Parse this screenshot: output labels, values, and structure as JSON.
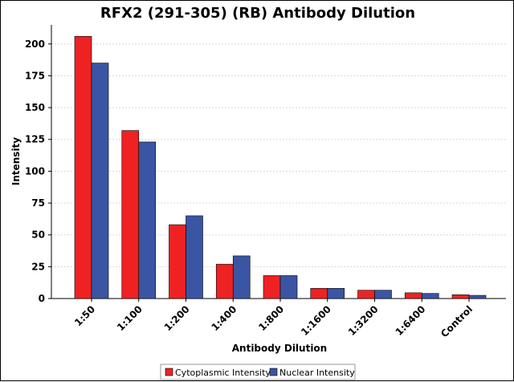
{
  "chart_data": {
    "type": "bar",
    "title": "RFX2 (291-305) (RB) Antibody Dilution",
    "xlabel": "Antibody Dilution",
    "ylabel": "Intensity",
    "ylim": [
      0,
      215
    ],
    "yticks": [
      0,
      25,
      50,
      75,
      100,
      125,
      150,
      175,
      200
    ],
    "grid": true,
    "legend_position": "bottom",
    "categories": [
      "1:50",
      "1:100",
      "1:200",
      "1:400",
      "1:800",
      "1:1600",
      "1:3200",
      "1:6400",
      "Control"
    ],
    "series": [
      {
        "name": "Cytoplasmic Intensity",
        "color": "#ee2222",
        "values": [
          206,
          132,
          58,
          27,
          18,
          8,
          6.5,
          4.5,
          3
        ]
      },
      {
        "name": "Nuclear Intensity",
        "color": "#3a55a4",
        "values": [
          185,
          123,
          65,
          33.5,
          18,
          8,
          6.5,
          4,
          2.5
        ]
      }
    ]
  }
}
